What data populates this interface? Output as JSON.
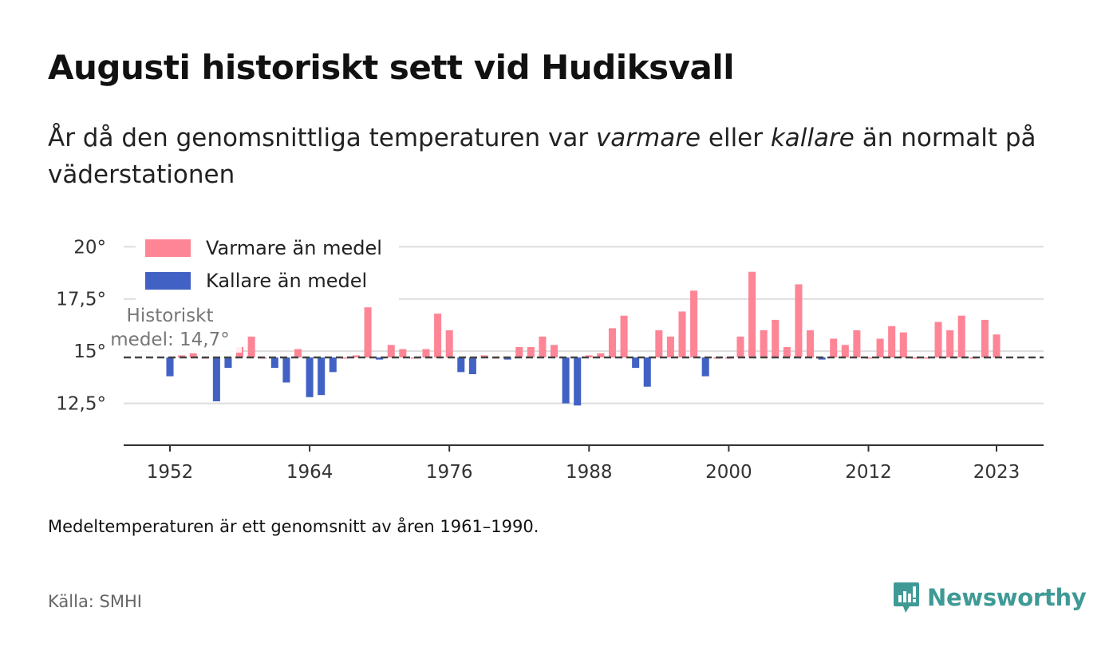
{
  "title": "Augusti historiskt sett vid Hudiksvall",
  "subtitle": {
    "part1": "År då den genomsnittliga temperaturen var ",
    "warm_word": "varmare",
    "part2": " eller ",
    "cold_word": "kallare",
    "part3": " än normalt på väderstationen"
  },
  "footnote": "Medeltemperaturen är ett genomsnitt av åren 1961–1990.",
  "source": "Källa: SMHI",
  "logo_text": "Newsworthy",
  "colors": {
    "warm": "#fe8596",
    "cold": "#4162c4",
    "brand": "#3f9a96",
    "grid": "#dddddd",
    "mean_line": "#444444"
  },
  "chart_data": {
    "type": "bar",
    "baseline": 14.7,
    "baseline_label_line1": "Historiskt",
    "baseline_label_line2": "medel: 14,7°",
    "legend": {
      "warm_label": "Varmare än medel",
      "cold_label": "Kallare än medel",
      "position": "top-left"
    },
    "ylim": [
      10.5,
      21.5
    ],
    "yticks": [
      12.5,
      15,
      17.5,
      20
    ],
    "ytick_labels": [
      "12,5°",
      "15°",
      "17,5°",
      "20°"
    ],
    "xticks": [
      1952,
      1964,
      1976,
      1988,
      2000,
      2012,
      2023
    ],
    "xtick_labels": [
      "1952",
      "1964",
      "1976",
      "1988",
      "2000",
      "2012",
      "2023"
    ],
    "grid": true,
    "years": [
      1952,
      1953,
      1954,
      1955,
      1956,
      1957,
      1958,
      1959,
      1960,
      1961,
      1962,
      1963,
      1964,
      1965,
      1966,
      1967,
      1968,
      1969,
      1970,
      1971,
      1972,
      1973,
      1974,
      1975,
      1976,
      1977,
      1978,
      1979,
      1980,
      1981,
      1982,
      1983,
      1984,
      1985,
      1986,
      1987,
      1988,
      1989,
      1990,
      1991,
      1992,
      1993,
      1994,
      1995,
      1996,
      1997,
      1998,
      1999,
      2000,
      2001,
      2002,
      2003,
      2004,
      2005,
      2006,
      2007,
      2008,
      2009,
      2010,
      2011,
      2012,
      2013,
      2014,
      2015,
      2016,
      2017,
      2018,
      2019,
      2020,
      2021,
      2022,
      2023
    ],
    "values": [
      13.8,
      14.8,
      14.9,
      14.7,
      12.6,
      14.2,
      15.2,
      15.7,
      14.7,
      14.2,
      13.5,
      15.1,
      12.8,
      12.9,
      14.0,
      14.7,
      14.8,
      17.1,
      14.6,
      15.3,
      15.1,
      14.7,
      15.1,
      16.8,
      16.0,
      14.0,
      13.9,
      14.8,
      14.7,
      14.6,
      15.2,
      15.2,
      15.7,
      15.3,
      12.5,
      12.4,
      14.8,
      14.9,
      16.1,
      16.7,
      14.2,
      13.3,
      16.0,
      15.7,
      16.9,
      17.9,
      13.8,
      14.7,
      14.7,
      15.7,
      18.8,
      16.0,
      16.5,
      15.2,
      18.2,
      16.0,
      14.6,
      15.6,
      15.3,
      16.0,
      14.7,
      15.6,
      16.2,
      15.9,
      14.7,
      14.7,
      16.4,
      16.0,
      16.7,
      14.7,
      16.5,
      15.8
    ]
  }
}
